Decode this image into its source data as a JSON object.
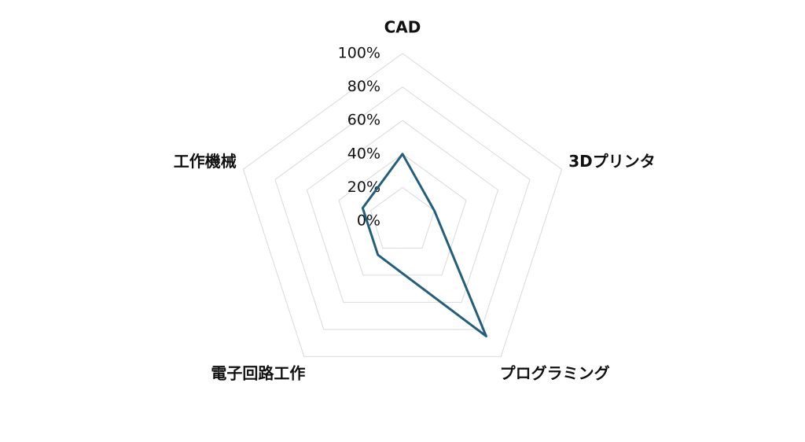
{
  "chart_data": {
    "type": "radar",
    "categories": [
      "CAD",
      "3Dプリンタ",
      "プログラミング",
      "電子回路工作",
      "工作機械"
    ],
    "series": [
      {
        "color": "#215f7b",
        "values": [
          40,
          20,
          85,
          25,
          25
        ]
      }
    ],
    "ylim": [
      0,
      100
    ],
    "yticks": [
      {
        "value": 0,
        "label": "0%"
      },
      {
        "value": 20,
        "label": "20%"
      },
      {
        "value": 40,
        "label": "40%"
      },
      {
        "value": 60,
        "label": "60%"
      },
      {
        "value": 80,
        "label": "80%"
      },
      {
        "value": 100,
        "label": "100%"
      }
    ],
    "grid": true
  }
}
